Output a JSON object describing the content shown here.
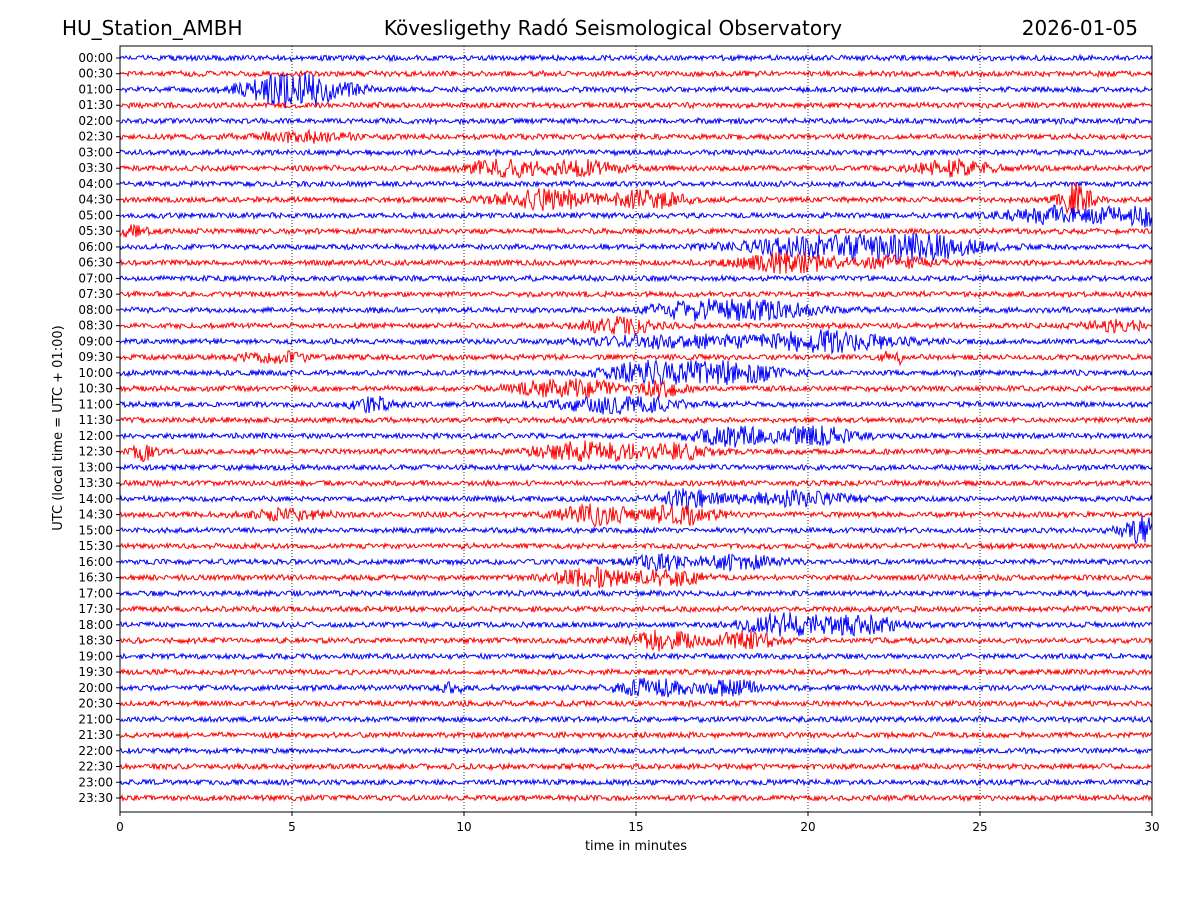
{
  "header": {
    "station": "HU_Station_AMBH",
    "observatory": "Kövesligethy Radó Seismological Observatory",
    "date": "2026-01-05"
  },
  "chart_data": {
    "type": "line",
    "title": "Kövesligethy Radó Seismological Observatory",
    "xlabel": "time in minutes",
    "ylabel": "UTC (local time = UTC + 01:00)",
    "xlim": [
      0,
      30
    ],
    "x_ticks": [
      "0",
      "5",
      "10",
      "15",
      "20",
      "25",
      "30"
    ],
    "grid": "vertical dotted lines at 5-minute intervals",
    "colors": {
      "even_trace": "#0000ff",
      "odd_trace": "#ff0000",
      "grid": "#000000"
    },
    "rows": [
      "00:00",
      "00:30",
      "01:00",
      "01:30",
      "02:00",
      "02:30",
      "03:00",
      "03:30",
      "04:00",
      "04:30",
      "05:00",
      "05:30",
      "06:00",
      "06:30",
      "07:00",
      "07:30",
      "08:00",
      "08:30",
      "09:00",
      "09:30",
      "10:00",
      "10:30",
      "11:00",
      "11:30",
      "12:00",
      "12:30",
      "13:00",
      "13:30",
      "14:00",
      "14:30",
      "15:00",
      "15:30",
      "16:00",
      "16:30",
      "17:00",
      "17:30",
      "18:00",
      "18:30",
      "19:00",
      "19:30",
      "20:00",
      "20:30",
      "21:00",
      "21:30",
      "22:00",
      "22:30",
      "23:00",
      "23:30"
    ],
    "events": [
      {
        "row": 2,
        "minute": 5.1,
        "amplitude": 1.9,
        "duration": 2.5
      },
      {
        "row": 5,
        "minute": 5.3,
        "amplitude": 0.5,
        "duration": 2.5
      },
      {
        "row": 7,
        "minute": 11.2,
        "amplitude": 0.9,
        "duration": 2
      },
      {
        "row": 7,
        "minute": 13.5,
        "amplitude": 0.7,
        "duration": 2
      },
      {
        "row": 7,
        "minute": 24.2,
        "amplitude": 0.8,
        "duration": 2
      },
      {
        "row": 9,
        "minute": 12.4,
        "amplitude": 1.0,
        "duration": 2.5
      },
      {
        "row": 9,
        "minute": 15.3,
        "amplitude": 0.9,
        "duration": 1.8
      },
      {
        "row": 9,
        "minute": 27.8,
        "amplitude": 1.8,
        "duration": 0.8
      },
      {
        "row": 10,
        "minute": 27.5,
        "amplitude": 0.9,
        "duration": 3
      },
      {
        "row": 10,
        "minute": 29.8,
        "amplitude": 0.9,
        "duration": 1.5
      },
      {
        "row": 11,
        "minute": 0.3,
        "amplitude": 0.5,
        "duration": 1
      },
      {
        "row": 12,
        "minute": 21.0,
        "amplitude": 1.2,
        "duration": 5
      },
      {
        "row": 12,
        "minute": 23.5,
        "amplitude": 0.8,
        "duration": 2.5
      },
      {
        "row": 13,
        "minute": 19.5,
        "amplitude": 1.0,
        "duration": 2.5
      },
      {
        "row": 13,
        "minute": 22.5,
        "amplitude": 0.6,
        "duration": 2
      },
      {
        "row": 16,
        "minute": 16.5,
        "amplitude": 0.8,
        "duration": 2
      },
      {
        "row": 16,
        "minute": 18.5,
        "amplitude": 0.9,
        "duration": 3
      },
      {
        "row": 17,
        "minute": 14.5,
        "amplitude": 0.8,
        "duration": 2
      },
      {
        "row": 17,
        "minute": 29.0,
        "amplitude": 0.5,
        "duration": 1.5
      },
      {
        "row": 18,
        "minute": 20.5,
        "amplitude": 1.0,
        "duration": 4
      },
      {
        "row": 18,
        "minute": 16.0,
        "amplitude": 0.6,
        "duration": 4
      },
      {
        "row": 19,
        "minute": 22.5,
        "amplitude": 0.9,
        "duration": 0.5
      },
      {
        "row": 19,
        "minute": 4.5,
        "amplitude": 0.5,
        "duration": 2
      },
      {
        "row": 20,
        "minute": 15.5,
        "amplitude": 1.2,
        "duration": 2.5
      },
      {
        "row": 20,
        "minute": 17.8,
        "amplitude": 1.0,
        "duration": 2.5
      },
      {
        "row": 21,
        "minute": 13.0,
        "amplitude": 0.9,
        "duration": 3
      },
      {
        "row": 21,
        "minute": 15.8,
        "amplitude": 0.8,
        "duration": 1
      },
      {
        "row": 22,
        "minute": 7.3,
        "amplitude": 0.8,
        "duration": 1
      },
      {
        "row": 22,
        "minute": 14.5,
        "amplitude": 0.9,
        "duration": 3
      },
      {
        "row": 24,
        "minute": 17.8,
        "amplitude": 1.0,
        "duration": 2
      },
      {
        "row": 24,
        "minute": 20.3,
        "amplitude": 0.9,
        "duration": 2
      },
      {
        "row": 25,
        "minute": 0.7,
        "amplitude": 0.8,
        "duration": 0.6
      },
      {
        "row": 25,
        "minute": 13.5,
        "amplitude": 1.0,
        "duration": 2.5
      },
      {
        "row": 25,
        "minute": 16.0,
        "amplitude": 0.8,
        "duration": 2
      },
      {
        "row": 28,
        "minute": 16.5,
        "amplitude": 0.9,
        "duration": 1.5
      },
      {
        "row": 28,
        "minute": 19.5,
        "amplitude": 0.7,
        "duration": 3
      },
      {
        "row": 29,
        "minute": 13.8,
        "amplitude": 1.0,
        "duration": 1.8
      },
      {
        "row": 29,
        "minute": 16.3,
        "amplitude": 1.0,
        "duration": 1.8
      },
      {
        "row": 29,
        "minute": 4.8,
        "amplitude": 0.5,
        "duration": 2
      },
      {
        "row": 30,
        "minute": 29.7,
        "amplitude": 1.5,
        "duration": 1
      },
      {
        "row": 32,
        "minute": 15.8,
        "amplitude": 0.8,
        "duration": 1.5
      },
      {
        "row": 32,
        "minute": 18.0,
        "amplitude": 0.7,
        "duration": 2
      },
      {
        "row": 33,
        "minute": 13.8,
        "amplitude": 0.9,
        "duration": 2
      },
      {
        "row": 33,
        "minute": 16.0,
        "amplitude": 0.8,
        "duration": 1.5
      },
      {
        "row": 36,
        "minute": 19.3,
        "amplitude": 1.2,
        "duration": 2
      },
      {
        "row": 36,
        "minute": 21.5,
        "amplitude": 0.9,
        "duration": 2
      },
      {
        "row": 37,
        "minute": 15.7,
        "amplitude": 1.0,
        "duration": 1.8
      },
      {
        "row": 37,
        "minute": 18.2,
        "amplitude": 0.9,
        "duration": 1.5
      },
      {
        "row": 40,
        "minute": 15.5,
        "amplitude": 0.9,
        "duration": 1.8
      },
      {
        "row": 40,
        "minute": 17.8,
        "amplitude": 0.8,
        "duration": 1.5
      },
      {
        "row": 40,
        "minute": 9.6,
        "amplitude": 0.6,
        "duration": 0.6
      }
    ]
  }
}
